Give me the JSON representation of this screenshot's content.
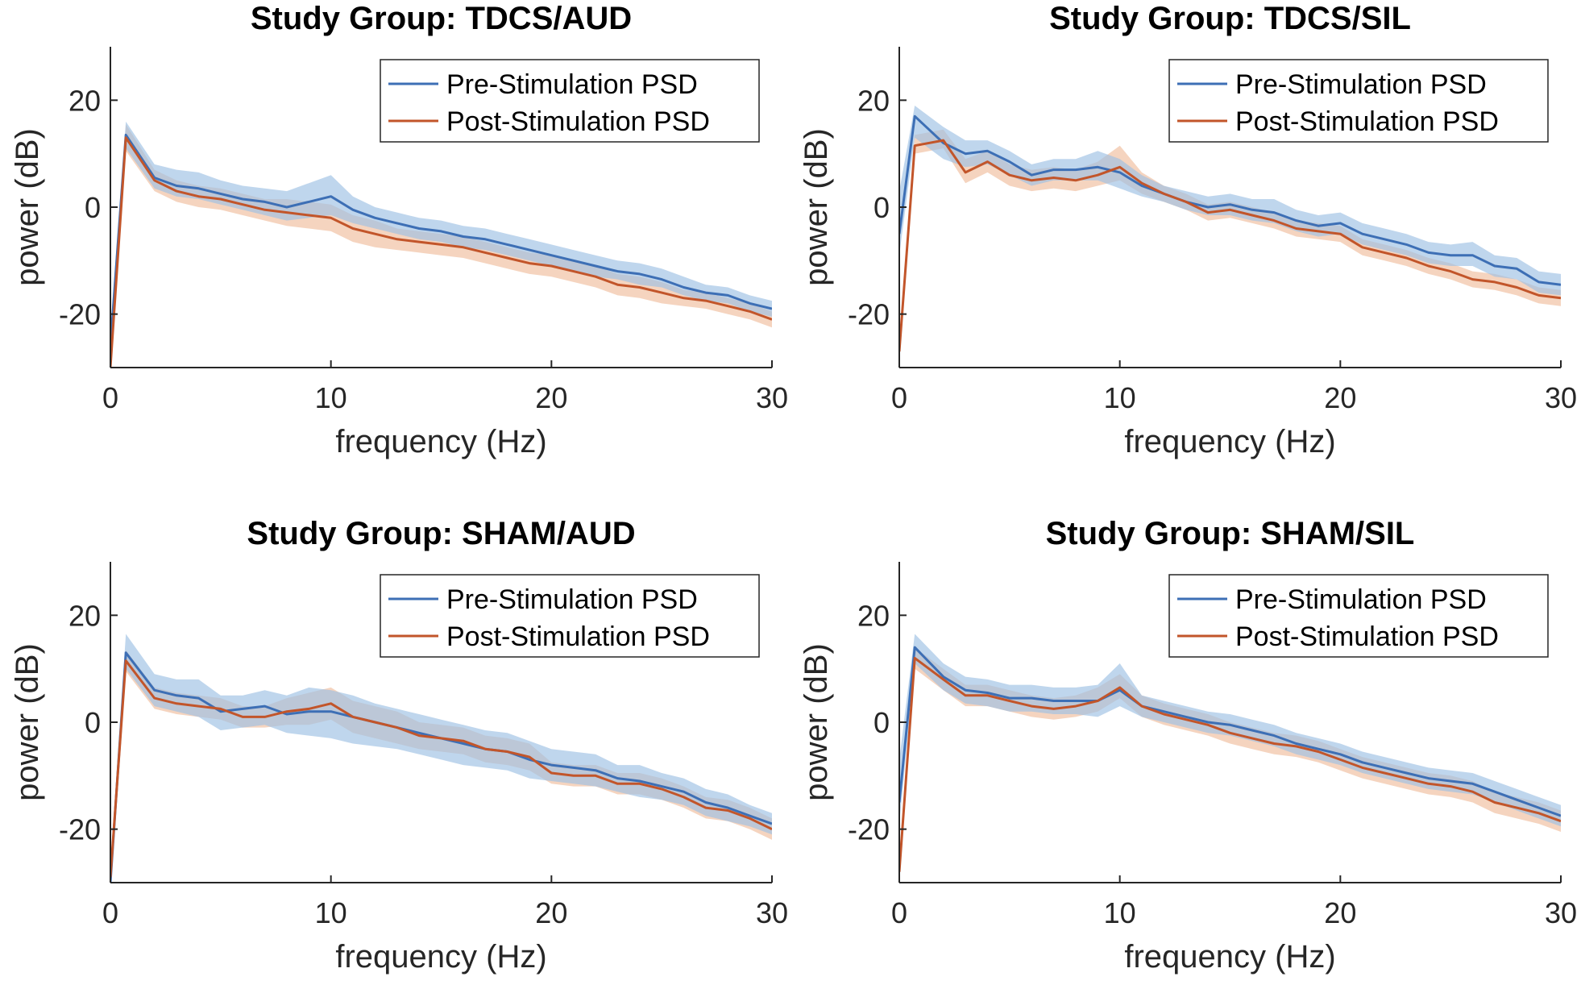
{
  "figure": {
    "colors": {
      "pre": "#3d6fb5",
      "post": "#c2552a",
      "pre_band": "#9cc0e3",
      "post_band": "#efb894",
      "axis": "#262626"
    }
  },
  "chart_data": [
    {
      "type": "line",
      "title": "Study Group: TDCS/AUD",
      "xlabel": "frequency (Hz)",
      "ylabel": "power (dB)",
      "xlim": [
        0,
        30
      ],
      "ylim": [
        -30,
        30
      ],
      "xticks": [
        0,
        10,
        20,
        30
      ],
      "yticks": [
        -20,
        0,
        20
      ],
      "xtick_labels": [
        "0",
        "10",
        "20",
        "30"
      ],
      "ytick_labels": [
        "-20",
        "0",
        "20"
      ],
      "grid": false,
      "legend_position": "top-right",
      "x": [
        0,
        0.7,
        2,
        3,
        4,
        5,
        6,
        7,
        8,
        9,
        10,
        11,
        12,
        13,
        14,
        15,
        16,
        17,
        18,
        19,
        20,
        21,
        22,
        23,
        24,
        25,
        26,
        27,
        28,
        29,
        30
      ],
      "series": [
        {
          "name": "Pre-Stimulation PSD",
          "values": [
            -26,
            13.5,
            5.5,
            4,
            3.5,
            2.5,
            1.5,
            1,
            0,
            1,
            2,
            -0.5,
            -2,
            -3,
            -4,
            -4.5,
            -5.5,
            -6,
            -7,
            -8,
            -9,
            -10,
            -11,
            -12,
            -12.5,
            -13.5,
            -15,
            -16,
            -16.5,
            -18,
            -19
          ],
          "lower": [
            -29,
            11,
            3.5,
            2,
            1.5,
            0.5,
            -0.5,
            -1.5,
            -2.5,
            -2,
            -1.5,
            -3,
            -4,
            -5,
            -6,
            -6.5,
            -7.5,
            -8,
            -9,
            -10,
            -11,
            -12,
            -13,
            -13.5,
            -14.5,
            -15,
            -16.5,
            -17.5,
            -18,
            -19.5,
            -20.5
          ],
          "upper": [
            -23,
            16,
            8,
            7,
            6.5,
            5,
            4,
            3.5,
            3,
            4.5,
            6,
            2,
            0,
            -1,
            -2,
            -2.5,
            -3.5,
            -4,
            -5,
            -6,
            -7,
            -8,
            -9,
            -10,
            -10.5,
            -11.5,
            -13,
            -14.5,
            -15,
            -16.5,
            -17.5
          ]
        },
        {
          "name": "Post-Stimulation PSD",
          "values": [
            -30,
            13,
            5,
            3,
            2,
            1.5,
            0.5,
            -0.5,
            -1,
            -1.5,
            -2,
            -4,
            -5,
            -6,
            -6.5,
            -7,
            -7.5,
            -8.5,
            -9.5,
            -10.5,
            -11,
            -12,
            -13,
            -14.5,
            -15,
            -16,
            -17,
            -17.5,
            -18.5,
            -19.5,
            -21
          ],
          "lower": [
            -30,
            10.5,
            3,
            1,
            0,
            -0.5,
            -1.5,
            -2.5,
            -3.5,
            -4,
            -4.5,
            -6.5,
            -7.5,
            -8,
            -8.5,
            -9,
            -9.5,
            -10.5,
            -11.5,
            -12.5,
            -13,
            -14,
            -15,
            -16.5,
            -17,
            -18,
            -18.5,
            -19,
            -20,
            -21,
            -22.5
          ],
          "upper": [
            -28,
            15.5,
            7,
            5,
            4,
            3.5,
            2.5,
            1.5,
            1.5,
            1,
            0.5,
            -1.5,
            -2.5,
            -4,
            -4.5,
            -5,
            -5.5,
            -6.5,
            -7.5,
            -8.5,
            -9,
            -10,
            -11,
            -12.5,
            -13,
            -14,
            -15.5,
            -16,
            -17,
            -18,
            -19.5
          ]
        }
      ]
    },
    {
      "type": "line",
      "title": "Study Group: TDCS/SIL",
      "xlabel": "frequency (Hz)",
      "ylabel": "power (dB)",
      "xlim": [
        0,
        30
      ],
      "ylim": [
        -30,
        30
      ],
      "xticks": [
        0,
        10,
        20,
        30
      ],
      "yticks": [
        -20,
        0,
        20
      ],
      "xtick_labels": [
        "0",
        "10",
        "20",
        "30"
      ],
      "ytick_labels": [
        "-20",
        "0",
        "20"
      ],
      "grid": false,
      "legend_position": "top-right",
      "x": [
        0,
        0.7,
        2,
        3,
        4,
        5,
        6,
        7,
        8,
        9,
        10,
        11,
        12,
        13,
        14,
        15,
        16,
        17,
        18,
        19,
        20,
        21,
        22,
        23,
        24,
        25,
        26,
        27,
        28,
        29,
        30
      ],
      "series": [
        {
          "name": "Pre-Stimulation PSD",
          "values": [
            -5,
            17,
            12,
            10,
            10.5,
            8.5,
            6,
            7,
            7,
            7.5,
            6.5,
            4,
            2.5,
            1,
            0,
            0.5,
            -0.5,
            -1,
            -2.5,
            -3.5,
            -3,
            -5,
            -6,
            -7,
            -8.5,
            -9,
            -9,
            -11,
            -11.5,
            -14,
            -14.5
          ],
          "lower": [
            -9,
            13,
            9,
            7.5,
            8,
            6,
            4,
            5,
            5,
            5,
            3.5,
            2,
            1,
            -0.5,
            -1.5,
            -1.5,
            -2.5,
            -3,
            -4.5,
            -5.5,
            -5,
            -7,
            -8,
            -9,
            -10.5,
            -11,
            -11,
            -13,
            -13.5,
            -16,
            -16.5
          ],
          "upper": [
            3,
            19,
            15,
            12.5,
            12.5,
            10.5,
            8,
            9,
            9,
            10.5,
            9,
            6,
            4,
            3,
            2,
            2.5,
            1.5,
            1.5,
            -0.5,
            -1.5,
            -1,
            -3,
            -4,
            -5,
            -6.5,
            -7,
            -6.5,
            -9,
            -9.5,
            -12,
            -12.5
          ]
        },
        {
          "name": "Post-Stimulation PSD",
          "values": [
            -27,
            11.5,
            12.5,
            6.5,
            8.5,
            6,
            5,
            5.5,
            5,
            6,
            7.5,
            4.5,
            2.5,
            1,
            -1,
            -0.5,
            -1.5,
            -2.5,
            -4,
            -4.5,
            -5,
            -7.5,
            -8.5,
            -9.5,
            -11,
            -12,
            -13.5,
            -14,
            -15,
            -16.5,
            -17
          ],
          "lower": [
            -29,
            10,
            11,
            4.5,
            6.5,
            4,
            3,
            3.5,
            3,
            4,
            5,
            2.5,
            1,
            -0.5,
            -2.5,
            -2,
            -3,
            -4,
            -5.5,
            -6,
            -6.5,
            -9,
            -10,
            -11,
            -12.5,
            -13.5,
            -15,
            -15.5,
            -16.5,
            -18,
            -18.5
          ],
          "upper": [
            -25,
            13.5,
            14.5,
            9,
            10.5,
            8,
            7,
            7.5,
            7,
            8.5,
            11.5,
            6.5,
            4,
            2.5,
            0.5,
            1,
            0,
            -1,
            -2.5,
            -3,
            -3.5,
            -6,
            -7,
            -8,
            -9.5,
            -10.5,
            -12,
            -12.5,
            -13.5,
            -15,
            -15.5
          ]
        }
      ]
    },
    {
      "type": "line",
      "title": "Study Group: SHAM/AUD",
      "xlabel": "frequency (Hz)",
      "ylabel": "power (dB)",
      "xlim": [
        0,
        30
      ],
      "ylim": [
        -30,
        30
      ],
      "xticks": [
        0,
        10,
        20,
        30
      ],
      "yticks": [
        -20,
        0,
        20
      ],
      "xtick_labels": [
        "0",
        "10",
        "20",
        "30"
      ],
      "ytick_labels": [
        "-20",
        "0",
        "20"
      ],
      "grid": false,
      "legend_position": "top-right",
      "x": [
        0,
        0.7,
        2,
        3,
        4,
        5,
        6,
        7,
        8,
        9,
        10,
        11,
        12,
        13,
        14,
        15,
        16,
        17,
        18,
        19,
        20,
        21,
        22,
        23,
        24,
        25,
        26,
        27,
        28,
        29,
        30
      ],
      "series": [
        {
          "name": "Pre-Stimulation PSD",
          "values": [
            -30,
            13,
            6,
            5,
            4.5,
            2,
            2.5,
            3,
            1.5,
            2,
            2,
            1,
            0,
            -1,
            -2,
            -3,
            -4,
            -5,
            -5.5,
            -7,
            -8,
            -8.5,
            -9,
            -10.5,
            -11,
            -12,
            -13,
            -15,
            -16,
            -17.5,
            -19
          ],
          "lower": [
            -30,
            10,
            3,
            2,
            1,
            -1.5,
            -1,
            -0.5,
            -2,
            -2.5,
            -3,
            -4,
            -4.5,
            -5,
            -6,
            -7,
            -8,
            -8.5,
            -9,
            -10.5,
            -11,
            -11.5,
            -12,
            -13,
            -14,
            -14.5,
            -15.5,
            -17.5,
            -18.5,
            -19.5,
            -21
          ],
          "upper": [
            -27,
            16.5,
            9,
            8,
            8,
            5,
            5,
            6,
            5,
            6.5,
            6,
            5,
            3.5,
            2.5,
            1.5,
            0.5,
            -0.5,
            -1.5,
            -2,
            -3.5,
            -5,
            -5.5,
            -6,
            -8,
            -8,
            -9.5,
            -10.5,
            -12.5,
            -13.5,
            -15.5,
            -17
          ]
        },
        {
          "name": "Post-Stimulation PSD",
          "values": [
            -29,
            11.5,
            4.5,
            3.5,
            3,
            2.5,
            1,
            1,
            2,
            2.5,
            3.5,
            1,
            0,
            -1,
            -2.5,
            -3,
            -3.5,
            -5,
            -5.5,
            -6.5,
            -9.5,
            -10,
            -10,
            -11.5,
            -11.5,
            -12.5,
            -14,
            -16,
            -16.5,
            -18,
            -20
          ],
          "lower": [
            -30,
            9.5,
            2.5,
            1.5,
            1,
            0.5,
            -1,
            -1,
            -0.5,
            -0.5,
            0.5,
            -2,
            -3,
            -4,
            -5,
            -5.5,
            -6,
            -7.5,
            -8,
            -9,
            -11.5,
            -12,
            -12,
            -13.5,
            -13.5,
            -14.5,
            -16,
            -18,
            -18.5,
            -20,
            -22
          ],
          "upper": [
            -26,
            13.5,
            6.5,
            5.5,
            5,
            4.5,
            3,
            3,
            4.5,
            5.5,
            6.5,
            4,
            3,
            2,
            0,
            -0.5,
            -1,
            -2.5,
            -3,
            -4,
            -7.5,
            -8,
            -8,
            -9.5,
            -9.5,
            -10.5,
            -12,
            -14,
            -14.5,
            -16,
            -18
          ]
        }
      ]
    },
    {
      "type": "line",
      "title": "Study Group: SHAM/SIL",
      "xlabel": "frequency (Hz)",
      "ylabel": "power (dB)",
      "xlim": [
        0,
        30
      ],
      "ylim": [
        -30,
        30
      ],
      "xticks": [
        0,
        10,
        20,
        30
      ],
      "yticks": [
        -20,
        0,
        20
      ],
      "xtick_labels": [
        "0",
        "10",
        "20",
        "30"
      ],
      "ytick_labels": [
        "-20",
        "0",
        "20"
      ],
      "grid": false,
      "legend_position": "top-right",
      "x": [
        0,
        0.7,
        2,
        3,
        4,
        5,
        6,
        7,
        8,
        9,
        10,
        11,
        12,
        13,
        14,
        15,
        16,
        17,
        18,
        19,
        20,
        21,
        22,
        23,
        24,
        25,
        26,
        27,
        28,
        29,
        30
      ],
      "series": [
        {
          "name": "Pre-Stimulation PSD",
          "values": [
            -15,
            14,
            8.5,
            6,
            5.5,
            4.5,
            4.5,
            4,
            4,
            4,
            6,
            3,
            2,
            1,
            0,
            -0.5,
            -1.5,
            -2.5,
            -4,
            -5,
            -6,
            -7.5,
            -8.5,
            -9.5,
            -10.5,
            -11,
            -11.5,
            -13,
            -14.5,
            -16,
            -17.5
          ],
          "lower": [
            -19,
            11,
            6,
            3.5,
            3,
            2,
            2,
            1.5,
            1.5,
            1,
            3,
            1,
            0,
            -1,
            -2,
            -2.5,
            -3.5,
            -4.5,
            -6,
            -7,
            -8,
            -9.5,
            -10.5,
            -11.5,
            -12.5,
            -13,
            -13.5,
            -15,
            -16.5,
            -18,
            -19.5
          ],
          "upper": [
            -7,
            16.5,
            11,
            8.5,
            8,
            7,
            7,
            6.5,
            6.5,
            7,
            11,
            5,
            4,
            3,
            2,
            1.5,
            0.5,
            -0.5,
            -2,
            -3,
            -4,
            -5.5,
            -6.5,
            -7.5,
            -8.5,
            -9,
            -9.5,
            -11,
            -12.5,
            -14,
            -15.5
          ]
        },
        {
          "name": "Post-Stimulation PSD",
          "values": [
            -28,
            12,
            8,
            5,
            5,
            4,
            3,
            2.5,
            3,
            4,
            6.5,
            3,
            1.5,
            0.5,
            -0.5,
            -2,
            -3,
            -4,
            -4.5,
            -5.5,
            -7,
            -8.5,
            -9.5,
            -10.5,
            -11.5,
            -12,
            -13,
            -15,
            -16,
            -17,
            -18.5
          ],
          "lower": [
            -30,
            10,
            6,
            3,
            3,
            2,
            1,
            0.5,
            1,
            2,
            4.5,
            1,
            -0.5,
            -1.5,
            -2.5,
            -4,
            -5,
            -6,
            -6.5,
            -7.5,
            -9,
            -10.5,
            -11.5,
            -12.5,
            -13.5,
            -14,
            -15,
            -17,
            -18,
            -19,
            -20.5
          ],
          "upper": [
            -25,
            14,
            10,
            7,
            7,
            6,
            5,
            4.5,
            5,
            6.5,
            9,
            5,
            3.5,
            2.5,
            1.5,
            0,
            -1,
            -2,
            -2.5,
            -3.5,
            -5,
            -6.5,
            -7.5,
            -8.5,
            -9.5,
            -10,
            -11,
            -13,
            -14,
            -15,
            -16.5
          ]
        }
      ]
    }
  ]
}
